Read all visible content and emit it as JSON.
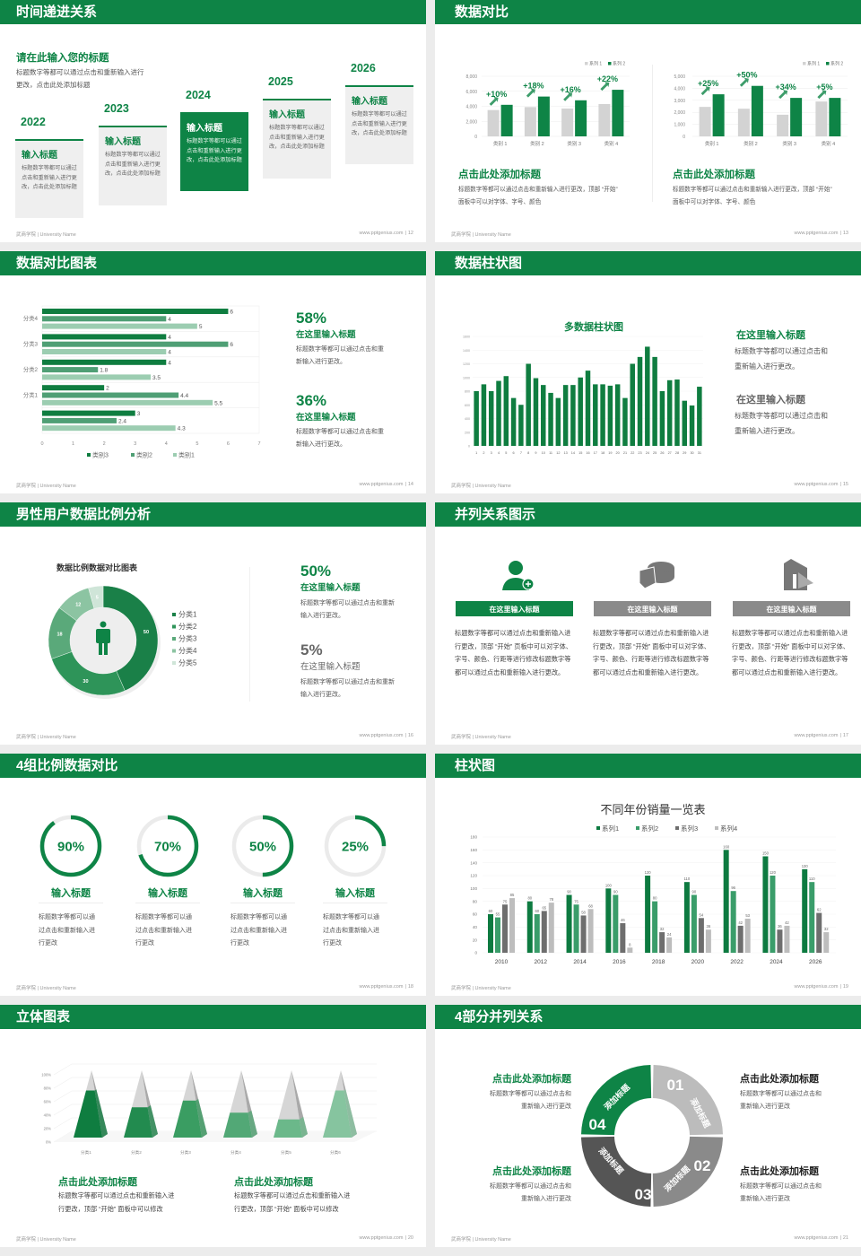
{
  "footer": {
    "left": "武商学院 | University Name",
    "site": "www.pptgenius.com",
    "sep": "|"
  },
  "colors": {
    "primary": "#0e8446",
    "chart_dark": "#0f7d40",
    "chart_mid": "#3a9d6a",
    "chart_light": "#9ccdb1",
    "gray": "#8a8a8a",
    "light_gray": "#d3d3d3",
    "card_bg": "#efefef"
  },
  "slides": [
    {
      "title": "时间递进关系",
      "page": "12",
      "heading": "请在此输入您的标题",
      "body": [
        "标题数字等都可以通过点击和重新输入进行",
        "更改，点击此处添加标题"
      ],
      "steps": [
        {
          "year": "2022",
          "title": "输入标题",
          "body": [
            "标题数字等都可以通过",
            "点击和重新输入进行更",
            "改，点击此处添加标题"
          ]
        },
        {
          "year": "2023",
          "title": "输入标题",
          "body": [
            "标题数字等都可以通过",
            "点击和重新输入进行更",
            "改，点击此处添加标题"
          ]
        },
        {
          "year": "2024",
          "title": "输入标题",
          "body": [
            "标题数字等都可以通过",
            "点击和重新输入进行更",
            "改，点击此处添加标题"
          ],
          "active": true
        },
        {
          "year": "2025",
          "title": "输入标题",
          "body": [
            "标题数字等都可以通过",
            "点击和重新输入进行更",
            "改，点击此处添加标题"
          ]
        },
        {
          "year": "2026",
          "title": "输入标题",
          "body": [
            "标题数字等都可以通过",
            "点击和重新输入进行更",
            "改，点击此处添加标题"
          ]
        }
      ]
    },
    {
      "title": "数据对比",
      "page": "13",
      "sections": [
        {
          "heading": "点击此处添加标题",
          "body": [
            "标题数字等都可以通过点击和重新输入进行更改，顶部 “开始”",
            "面板中可以对字体、字号、颜色"
          ]
        },
        {
          "heading": "点击此处添加标题",
          "body": [
            "标题数字等都可以通过点击和重新输入进行更改，顶部 “开始”",
            "面板中可以对字体、字号、颜色"
          ]
        }
      ]
    },
    {
      "title": "数据对比图表",
      "page": "14",
      "stats": [
        {
          "value": "58%",
          "title": "在这里输入标题",
          "body": [
            "标题数字等都可以通过点击和重",
            "新输入进行更改。"
          ]
        },
        {
          "value": "36%",
          "title": "在这里输入标题",
          "body": [
            "标题数字等都可以通过点击和重",
            "新输入进行更改。"
          ]
        }
      ]
    },
    {
      "title": "数据柱状图",
      "page": "15",
      "stats": [
        {
          "title": "在这里输入标题",
          "body": [
            "标题数字等都可以通过点击和",
            "重新输入进行更改。"
          ]
        },
        {
          "title": "在这里输入标题",
          "body": [
            "标题数字等都可以通过点击和",
            "重新输入进行更改。"
          ]
        }
      ]
    },
    {
      "title": "男性用户数据比例分析",
      "page": "16",
      "stats": [
        {
          "value": "50%",
          "title": "在这里输入标题",
          "body": [
            "标题数字等都可以通过点击和重新",
            "输入进行更改。"
          ]
        },
        {
          "value": "5%",
          "title": "在这里输入标题",
          "body": [
            "标题数字等都可以通过点击和重新",
            "输入进行更改。"
          ]
        }
      ]
    },
    {
      "title": "并列关系图示",
      "page": "17",
      "columns": [
        {
          "icon": "person-add-icon",
          "title": "在这里输入标题",
          "body": "标题数字等都可以通过点击和重新输入进行更改，顶部 “开始” 页板中可以对字体、字号、颜色、行距等进行修改标题数字等都可以通过点击和重新输入进行更改。"
        },
        {
          "icon": "pie-chart-icon",
          "title": "在这里输入标题",
          "body": "标题数字等都可以通过点击和重新输入进行更改，顶部 “开始” 面板中可以对字体、字号、颜色、行距等进行修改标题数字等都可以通过点击和重新输入进行更改。"
        },
        {
          "icon": "building-chart-icon",
          "title": "在这里输入标题",
          "body": "标题数字等都可以通过点击和重新输入进行更改，顶部 “开始” 面板中可以对字体、字号、颜色、行距等进行修改标题数字等都可以通过点击和重新输入进行更改。"
        }
      ]
    },
    {
      "title": "4组比例数据对比",
      "page": "18",
      "rings": [
        {
          "percent": 90,
          "label": "90%",
          "title": "输入标题",
          "body": [
            "标题数字等都可以通",
            "过点击和重新输入进",
            "行更改"
          ]
        },
        {
          "percent": 70,
          "label": "70%",
          "title": "输入标题",
          "body": [
            "标题数字等都可以通",
            "过点击和重新输入进",
            "行更改"
          ]
        },
        {
          "percent": 50,
          "label": "50%",
          "title": "输入标题",
          "body": [
            "标题数字等都可以通",
            "过点击和重新输入进",
            "行更改"
          ]
        },
        {
          "percent": 25,
          "label": "25%",
          "title": "输入标题",
          "body": [
            "标题数字等都可以通",
            "过点击和重新输入进",
            "行更改"
          ]
        }
      ]
    },
    {
      "title": "柱状图",
      "page": "19"
    },
    {
      "title": "立体图表",
      "page": "20",
      "sections": [
        {
          "heading": "点击此处添加标题",
          "body": [
            "标题数字等都可以通过点击和重新输入进",
            "行更改，顶部 “开始” 面板中可以修改"
          ]
        },
        {
          "heading": "点击此处添加标题",
          "body": [
            "标题数字等都可以通过点击和重新输入进",
            "行更改，顶部 “开始” 面板中可以修改"
          ]
        }
      ]
    },
    {
      "title": "4部分并列关系",
      "page": "21",
      "segments": [
        {
          "number": "01",
          "label": "添加标题"
        },
        {
          "number": "02",
          "label": "添加标题"
        },
        {
          "number": "03",
          "label": "添加标题"
        },
        {
          "number": "04",
          "label": "添加标题"
        }
      ],
      "blocks": [
        {
          "heading": "点击此处添加标题",
          "body": [
            "标题数字等都可以通过点击和",
            "重新输入进行更改"
          ]
        },
        {
          "heading": "点击此处添加标题",
          "body": [
            "标题数字等都可以通过点击和",
            "重新输入进行更改"
          ]
        },
        {
          "heading": "点击此处添加标题",
          "body": [
            "标题数字等都可以通过点击和",
            "重新输入进行更改"
          ]
        },
        {
          "heading": "点击此处添加标题",
          "body": [
            "标题数字等都可以通过点击和",
            "重新输入进行更改"
          ]
        }
      ]
    }
  ],
  "chart_data": [
    {
      "type": "bar",
      "categories": [
        "类别 1",
        "类别 2",
        "类别 3",
        "类别 4"
      ],
      "series": [
        {
          "name": "系列 1",
          "values": [
            3500,
            3900,
            3700,
            4300
          ]
        },
        {
          "name": "系列 2",
          "values": [
            4200,
            5300,
            4800,
            6200
          ]
        }
      ],
      "yticks": [
        "0",
        "2,000",
        "4,000",
        "6,000",
        "8,000"
      ],
      "ylim": [
        0,
        8000
      ],
      "annotations": [
        "+10%",
        "+18%",
        "+16%",
        "+22%"
      ],
      "legend": "top-right",
      "grid": true
    },
    {
      "type": "bar",
      "categories": [
        "类别 1",
        "类别 2",
        "类别 3",
        "类别 4"
      ],
      "series": [
        {
          "name": "系列 1",
          "values": [
            2450,
            2300,
            1800,
            2900
          ]
        },
        {
          "name": "系列 2",
          "values": [
            3500,
            4200,
            3200,
            3200
          ]
        }
      ],
      "yticks": [
        "0",
        "1,000",
        "2,000",
        "3,000",
        "4,000",
        "5,000"
      ],
      "ylim": [
        0,
        5000
      ],
      "annotations": [
        "+25%",
        "+50%",
        "+34%",
        "+5%"
      ],
      "legend": "top-right",
      "grid": true
    },
    {
      "type": "bar",
      "orientation": "horizontal",
      "categories": [
        "分类4",
        "分类3",
        "分类2",
        "分类1",
        ""
      ],
      "series": [
        {
          "name": "类别3",
          "values": [
            6,
            4,
            4,
            2,
            3
          ]
        },
        {
          "name": "类别2",
          "values": [
            4,
            6,
            1.8,
            4.4,
            2.4
          ]
        },
        {
          "name": "类别1",
          "values": [
            5,
            4,
            3.5,
            5.5,
            4.3
          ]
        }
      ],
      "xticks": [
        "0",
        "1",
        "2",
        "3",
        "4",
        "5",
        "6",
        "7"
      ],
      "xlim": [
        0,
        7
      ],
      "legend": "bottom",
      "data_labels": true
    },
    {
      "type": "bar",
      "title": "多数据柱状图",
      "categories": [
        "1",
        "2",
        "3",
        "4",
        "5",
        "6",
        "7",
        "8",
        "9",
        "10",
        "11",
        "12",
        "13",
        "14",
        "15",
        "16",
        "17",
        "18",
        "19",
        "20",
        "21",
        "22",
        "23",
        "24",
        "25",
        "26",
        "27",
        "28",
        "29",
        "30",
        "31"
      ],
      "values": [
        800,
        900,
        800,
        950,
        1020,
        700,
        600,
        1200,
        990,
        890,
        775,
        700,
        890,
        890,
        1000,
        1100,
        900,
        900,
        880,
        900,
        700,
        1200,
        1300,
        1450,
        1300,
        800,
        960,
        970,
        660,
        590,
        865
      ],
      "yticks": [
        "0",
        "200",
        "400",
        "600",
        "800",
        "1000",
        "1200",
        "1400",
        "1600"
      ],
      "ylim": [
        0,
        1600
      ],
      "grid": true
    },
    {
      "type": "pie",
      "style": "donut",
      "title": "数据比例数据对比图表",
      "categories": [
        "分类1",
        "分类2",
        "分类3",
        "分类4",
        "分类5"
      ],
      "values": [
        50,
        30,
        18,
        12,
        5
      ],
      "labels": [
        "50",
        "30",
        "18",
        "12",
        "5"
      ],
      "colors": [
        "#1a8048",
        "#2e9459",
        "#5aa97a",
        "#8cc4a2",
        "#cfe5d8"
      ],
      "legend": "right"
    },
    {
      "type": "bar",
      "title": "不同年份销量一览表",
      "categories": [
        "2010",
        "2012",
        "2014",
        "2016",
        "2018",
        "2020",
        "2022",
        "2024",
        "2026"
      ],
      "series": [
        {
          "name": "系列1",
          "values": [
            60,
            80,
            90,
            100,
            120,
            110,
            160,
            150,
            130
          ]
        },
        {
          "name": "系列2",
          "values": [
            55,
            60,
            75,
            90,
            80,
            90,
            96,
            120,
            110
          ]
        },
        {
          "name": "系列3",
          "values": [
            75,
            65,
            58,
            46,
            32,
            54,
            42,
            36,
            62
          ]
        },
        {
          "name": "系列4",
          "values": [
            85,
            78,
            68,
            8,
            24,
            36,
            53,
            42,
            32
          ]
        }
      ],
      "yticks": [
        "0",
        "20",
        "40",
        "60",
        "80",
        "100",
        "120",
        "140",
        "160",
        "180"
      ],
      "ylim": [
        0,
        180
      ],
      "legend": "top",
      "data_labels": true,
      "colors": [
        "#0d7a40",
        "#3a9d6a",
        "#6e6e6e",
        "#bdbdbd"
      ]
    },
    {
      "type": "bar",
      "style": "3d-pyramid",
      "categories": [
        "分类1",
        "分类2",
        "分类3",
        "分类4",
        "分类5",
        "分类6"
      ],
      "values": [
        70,
        45,
        55,
        37,
        27,
        70
      ],
      "yticks": [
        "0%",
        "20%",
        "40%",
        "60%",
        "80%",
        "100%"
      ],
      "ylim": [
        0,
        100
      ]
    }
  ]
}
